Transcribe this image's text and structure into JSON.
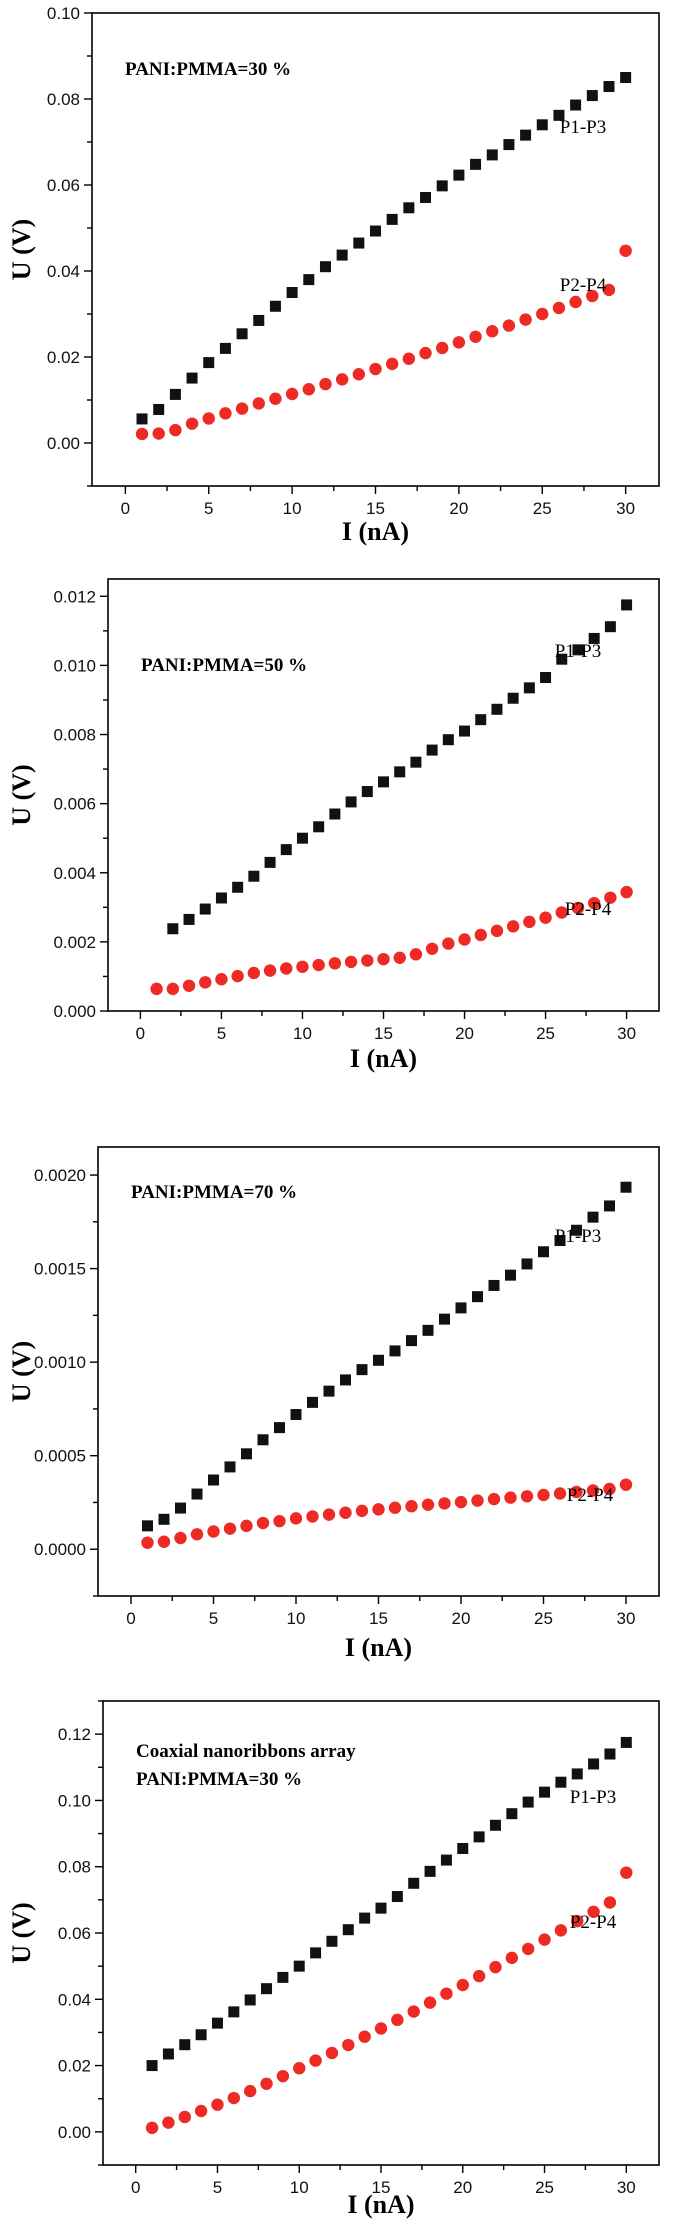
{
  "colors": {
    "square_series": "#111111",
    "circle_series": "#ee2a24",
    "axis": "#000000",
    "background": "#ffffff"
  },
  "chart_data": [
    {
      "type": "scatter",
      "annotation": [
        "PANI:PMMA=30 %"
      ],
      "xlabel": "I (nA)",
      "ylabel": "U (V)",
      "xlim": [
        -2,
        32
      ],
      "ylim": [
        -0.01,
        0.1
      ],
      "xticks": [
        0,
        5,
        10,
        15,
        20,
        25,
        30
      ],
      "xtick_labels": [
        "0",
        "5",
        "10",
        "15",
        "20",
        "25",
        "30"
      ],
      "yticks": [
        0,
        0.02,
        0.04,
        0.06,
        0.08,
        0.1
      ],
      "ytick_labels": [
        "0.00",
        "0.02",
        "0.04",
        "0.06",
        "0.08",
        "0.10"
      ],
      "grid": false,
      "series": [
        {
          "name": "P1-P3",
          "marker": "square",
          "color": "#111111",
          "x": [
            1,
            2,
            3,
            4,
            5,
            6,
            7,
            8,
            9,
            10,
            11,
            12,
            13,
            14,
            15,
            16,
            17,
            18,
            19,
            20,
            21,
            22,
            23,
            24,
            25,
            26,
            27,
            28,
            29,
            30
          ],
          "y": [
            0.0056,
            0.0078,
            0.0113,
            0.0151,
            0.0187,
            0.022,
            0.0254,
            0.0285,
            0.0318,
            0.035,
            0.038,
            0.041,
            0.0437,
            0.0465,
            0.0493,
            0.052,
            0.0547,
            0.0571,
            0.0598,
            0.0623,
            0.0648,
            0.067,
            0.0694,
            0.0716,
            0.074,
            0.0762,
            0.0786,
            0.0808,
            0.0829,
            0.085
          ]
        },
        {
          "name": "P2-P4",
          "marker": "circle",
          "color": "#ee2a24",
          "x": [
            1,
            2,
            3,
            4,
            5,
            6,
            7,
            8,
            9,
            10,
            11,
            12,
            13,
            14,
            15,
            16,
            17,
            18,
            19,
            20,
            21,
            22,
            23,
            24,
            25,
            26,
            27,
            28,
            29,
            30
          ],
          "y": [
            0.0021,
            0.0022,
            0.003,
            0.0045,
            0.0057,
            0.0069,
            0.008,
            0.0092,
            0.0103,
            0.0114,
            0.0125,
            0.0137,
            0.0148,
            0.016,
            0.0172,
            0.0184,
            0.0196,
            0.0209,
            0.0221,
            0.0234,
            0.0247,
            0.026,
            0.0273,
            0.0287,
            0.03,
            0.0314,
            0.0328,
            0.0342,
            0.0356,
            0.0447
          ]
        }
      ]
    },
    {
      "type": "scatter",
      "annotation": [
        "PANI:PMMA=50 %"
      ],
      "xlabel": "I (nA)",
      "ylabel": "U (V)",
      "xlim": [
        -2,
        32
      ],
      "ylim": [
        0,
        0.0125
      ],
      "xticks": [
        0,
        5,
        10,
        15,
        20,
        25,
        30
      ],
      "xtick_labels": [
        "0",
        "5",
        "10",
        "15",
        "20",
        "25",
        "30"
      ],
      "yticks": [
        0,
        0.002,
        0.004,
        0.006,
        0.008,
        0.01,
        0.012
      ],
      "ytick_labels": [
        "0.000",
        "0.002",
        "0.004",
        "0.006",
        "0.008",
        "0.010",
        "0.012"
      ],
      "grid": false,
      "series": [
        {
          "name": "P1-P3",
          "marker": "square",
          "color": "#111111",
          "x": [
            2,
            3,
            4,
            5,
            6,
            7,
            8,
            9,
            10,
            11,
            12,
            13,
            14,
            15,
            16,
            17,
            18,
            19,
            20,
            21,
            22,
            23,
            24,
            25,
            26,
            27,
            28,
            29,
            30
          ],
          "y": [
            0.00238,
            0.00265,
            0.00295,
            0.00327,
            0.00358,
            0.0039,
            0.0043,
            0.00467,
            0.005,
            0.00533,
            0.0057,
            0.00605,
            0.00635,
            0.00663,
            0.00692,
            0.0072,
            0.00755,
            0.00785,
            0.0081,
            0.00843,
            0.00873,
            0.00905,
            0.00935,
            0.00965,
            0.01018,
            0.01045,
            0.01078,
            0.01112,
            0.01175
          ]
        },
        {
          "name": "P2-P4",
          "marker": "circle",
          "color": "#ee2a24",
          "x": [
            1,
            2,
            3,
            4,
            5,
            6,
            7,
            8,
            9,
            10,
            11,
            12,
            13,
            14,
            15,
            16,
            17,
            18,
            19,
            20,
            21,
            22,
            23,
            24,
            25,
            26,
            27,
            28,
            29,
            30
          ],
          "y": [
            0.00064,
            0.00064,
            0.00073,
            0.00083,
            0.00092,
            0.00101,
            0.0011,
            0.00117,
            0.00123,
            0.00128,
            0.00133,
            0.00138,
            0.00142,
            0.00146,
            0.0015,
            0.00154,
            0.00164,
            0.0018,
            0.00195,
            0.00207,
            0.0022,
            0.00232,
            0.00245,
            0.00258,
            0.0027,
            0.00285,
            0.00298,
            0.00312,
            0.00328,
            0.00344
          ]
        }
      ]
    },
    {
      "type": "scatter",
      "annotation": [
        "PANI:PMMA=70 %"
      ],
      "xlabel": "I (nA)",
      "ylabel": "U (V)",
      "xlim": [
        -2,
        32
      ],
      "ylim": [
        -0.00025,
        0.00215
      ],
      "xticks": [
        0,
        5,
        10,
        15,
        20,
        25,
        30
      ],
      "xtick_labels": [
        "0",
        "5",
        "10",
        "15",
        "20",
        "25",
        "30"
      ],
      "yticks": [
        0,
        0.0005,
        0.001,
        0.0015,
        0.002
      ],
      "ytick_labels": [
        "0.0000",
        "0.0005",
        "0.0010",
        "0.0015",
        "0.0020"
      ],
      "grid": false,
      "series": [
        {
          "name": "P1-P3",
          "marker": "square",
          "color": "#111111",
          "x": [
            1,
            2,
            3,
            4,
            5,
            6,
            7,
            8,
            9,
            10,
            11,
            12,
            13,
            14,
            15,
            16,
            17,
            18,
            19,
            20,
            21,
            22,
            23,
            24,
            25,
            26,
            27,
            28,
            29,
            30
          ],
          "y": [
            0.000125,
            0.00016,
            0.00022,
            0.000295,
            0.00037,
            0.00044,
            0.00051,
            0.000585,
            0.00065,
            0.00072,
            0.000785,
            0.000845,
            0.000905,
            0.00096,
            0.00101,
            0.00106,
            0.001115,
            0.00117,
            0.00123,
            0.00129,
            0.00135,
            0.00141,
            0.001465,
            0.001525,
            0.00159,
            0.00165,
            0.001705,
            0.001775,
            0.001835,
            0.001935
          ]
        },
        {
          "name": "P2-P4",
          "marker": "circle",
          "color": "#ee2a24",
          "x": [
            1,
            2,
            3,
            4,
            5,
            6,
            7,
            8,
            9,
            10,
            11,
            12,
            13,
            14,
            15,
            16,
            17,
            18,
            19,
            20,
            21,
            22,
            23,
            24,
            25,
            26,
            27,
            28,
            29,
            30
          ],
          "y": [
            3.5e-05,
            4e-05,
            6e-05,
            8e-05,
            9.5e-05,
            0.00011,
            0.000125,
            0.00014,
            0.00015,
            0.000165,
            0.000175,
            0.000185,
            0.000195,
            0.000205,
            0.000213,
            0.000222,
            0.00023,
            0.000238,
            0.000245,
            0.000252,
            0.00026,
            0.000268,
            0.000276,
            0.000283,
            0.00029,
            0.000298,
            0.000306,
            0.000314,
            0.000322,
            0.000345
          ]
        }
      ]
    },
    {
      "type": "scatter",
      "annotation": [
        "Coaxial nanoribbons array",
        "PANI:PMMA=30 %"
      ],
      "xlabel": "I (nA)",
      "ylabel": "U (V)",
      "xlim": [
        -2,
        32
      ],
      "ylim": [
        -0.01,
        0.13
      ],
      "xticks": [
        0,
        5,
        10,
        15,
        20,
        25,
        30
      ],
      "xtick_labels": [
        "0",
        "5",
        "10",
        "15",
        "20",
        "25",
        "30"
      ],
      "yticks": [
        0,
        0.02,
        0.04,
        0.06,
        0.08,
        0.1,
        0.12
      ],
      "ytick_labels": [
        "0.00",
        "0.02",
        "0.04",
        "0.06",
        "0.08",
        "0.10",
        "0.12"
      ],
      "grid": false,
      "series": [
        {
          "name": "P1-P3",
          "marker": "square",
          "color": "#111111",
          "x": [
            1,
            2,
            3,
            4,
            5,
            6,
            7,
            8,
            9,
            10,
            11,
            12,
            13,
            14,
            15,
            16,
            17,
            18,
            19,
            20,
            21,
            22,
            23,
            24,
            25,
            26,
            27,
            28,
            29,
            30
          ],
          "y": [
            0.02,
            0.0235,
            0.0263,
            0.0293,
            0.0328,
            0.0362,
            0.0398,
            0.0432,
            0.0466,
            0.05,
            0.054,
            0.0575,
            0.061,
            0.0645,
            0.0675,
            0.071,
            0.075,
            0.0786,
            0.082,
            0.0855,
            0.089,
            0.0925,
            0.096,
            0.0995,
            0.1025,
            0.1055,
            0.108,
            0.111,
            0.114,
            0.1175
          ]
        },
        {
          "name": "P2-P4",
          "marker": "circle",
          "color": "#ee2a24",
          "x": [
            1,
            2,
            3,
            4,
            5,
            6,
            7,
            8,
            9,
            10,
            11,
            12,
            13,
            14,
            15,
            16,
            17,
            18,
            19,
            20,
            21,
            22,
            23,
            24,
            25,
            26,
            27,
            28,
            29,
            30
          ],
          "y": [
            0.0012,
            0.0028,
            0.0045,
            0.0063,
            0.0082,
            0.0102,
            0.0123,
            0.0145,
            0.0168,
            0.0192,
            0.0215,
            0.0238,
            0.0262,
            0.0287,
            0.0312,
            0.0338,
            0.0363,
            0.039,
            0.0417,
            0.0443,
            0.047,
            0.0497,
            0.0525,
            0.0552,
            0.058,
            0.0608,
            0.0636,
            0.0664,
            0.0692,
            0.0782
          ]
        }
      ]
    }
  ]
}
